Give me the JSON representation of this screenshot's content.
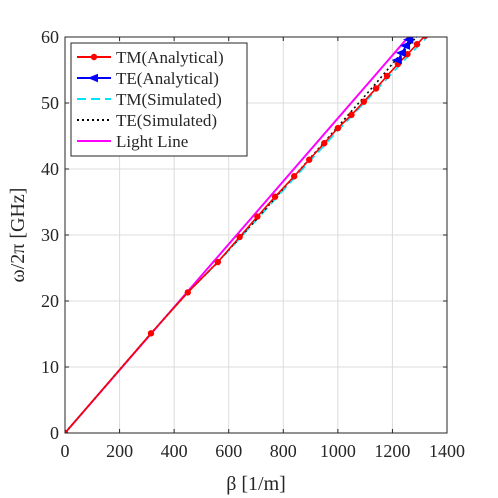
{
  "chart_data": {
    "type": "line",
    "title": "",
    "xlabel": "β [1/m]",
    "ylabel": "ω/2π [GHz]",
    "xlim": [
      0,
      1400
    ],
    "ylim": [
      0,
      60
    ],
    "xticks": [
      0,
      200,
      400,
      600,
      800,
      1000,
      1200,
      1400
    ],
    "yticks": [
      0,
      10,
      20,
      30,
      40,
      50,
      60
    ],
    "xtick_labels": [
      "0",
      "200",
      "400",
      "600",
      "800",
      "1000",
      "1200",
      "1400"
    ],
    "ytick_labels": [
      "0",
      "10",
      "20",
      "30",
      "40",
      "50",
      "60"
    ],
    "grid": true,
    "legend_position": "top-left",
    "series": [
      {
        "name": "TM(Analytical)",
        "color": "#ff0000",
        "style": "solid-dots",
        "x": [
          0,
          315,
          450,
          560,
          640,
          705,
          770,
          840,
          895,
          950,
          1000,
          1050,
          1095,
          1140,
          1180,
          1220,
          1255,
          1290,
          1320,
          1350
        ],
        "y": [
          0,
          15.1,
          21.3,
          25.9,
          29.7,
          32.8,
          35.8,
          38.9,
          41.4,
          43.9,
          46.2,
          48.2,
          50.2,
          52.2,
          54.1,
          55.9,
          57.4,
          58.9,
          60.2,
          61.5
        ]
      },
      {
        "name": "TE(Analytical)",
        "color": "#0000ff",
        "style": "solid-arrows",
        "x": [
          1220,
          1235,
          1250,
          1262,
          1275
        ],
        "y": [
          56.5,
          57.6,
          58.7,
          59.6,
          60.5
        ]
      },
      {
        "name": "TM(Simulated)",
        "color": "#00e5ff",
        "style": "dashed",
        "x": [
          0,
          315,
          450,
          560,
          700,
          840,
          1000,
          1140,
          1260,
          1340
        ],
        "y": [
          0,
          15.1,
          21.3,
          25.8,
          32.2,
          38.6,
          45.8,
          51.9,
          57.2,
          60.5
        ]
      },
      {
        "name": "TE(Simulated)",
        "color": "#000000",
        "style": "dotted",
        "x": [
          0,
          315,
          450,
          560,
          700,
          840,
          1000,
          1140,
          1240,
          1300
        ],
        "y": [
          0,
          15.1,
          21.3,
          25.9,
          32.3,
          38.9,
          46.4,
          53.0,
          57.9,
          60.5
        ]
      },
      {
        "name": "Light Line",
        "color": "#ff00ff",
        "style": "solid",
        "x": [
          0,
          1275
        ],
        "y": [
          0,
          60.8
        ]
      }
    ]
  }
}
